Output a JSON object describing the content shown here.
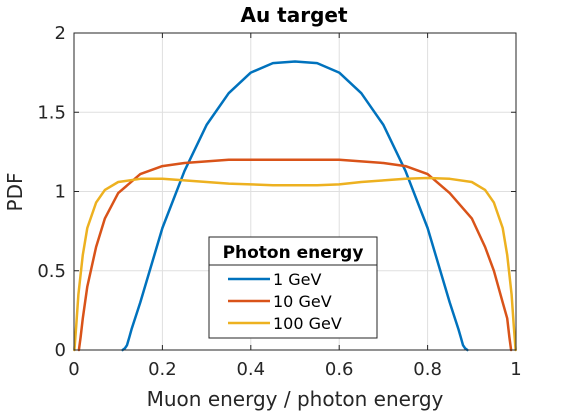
{
  "chart_data": {
    "type": "line",
    "title": "Au target",
    "xlabel": "Muon energy / photon energy",
    "ylabel": "PDF",
    "xlim": [
      0,
      1
    ],
    "ylim": [
      0,
      2
    ],
    "xticks": [
      "0",
      "0.2",
      "0.4",
      "0.6",
      "0.8",
      "1"
    ],
    "yticks": [
      "0",
      "0.5",
      "1",
      "1.5",
      "2"
    ],
    "grid": true,
    "legend": {
      "title": "Photon energy",
      "placement": "bottom-center"
    },
    "series": [
      {
        "name": "1 GeV",
        "color": "#0072BD",
        "x": [
          0.11,
          0.115,
          0.12,
          0.125,
          0.13,
          0.15,
          0.2,
          0.25,
          0.3,
          0.35,
          0.4,
          0.45,
          0.5,
          0.55,
          0.6,
          0.65,
          0.7,
          0.75,
          0.8,
          0.85,
          0.87,
          0.875,
          0.88,
          0.885,
          0.89
        ],
        "y": [
          0.0,
          0.01,
          0.03,
          0.08,
          0.13,
          0.3,
          0.77,
          1.13,
          1.42,
          1.62,
          1.75,
          1.81,
          1.82,
          1.81,
          1.75,
          1.62,
          1.42,
          1.13,
          0.77,
          0.3,
          0.13,
          0.08,
          0.03,
          0.01,
          0.0
        ]
      },
      {
        "name": "10 GeV",
        "color": "#D95319",
        "x": [
          0.011,
          0.015,
          0.02,
          0.03,
          0.05,
          0.07,
          0.1,
          0.15,
          0.2,
          0.25,
          0.3,
          0.35,
          0.4,
          0.5,
          0.6,
          0.65,
          0.7,
          0.75,
          0.8,
          0.85,
          0.9,
          0.93,
          0.95,
          0.97,
          0.98,
          0.985,
          0.989
        ],
        "y": [
          0.0,
          0.08,
          0.2,
          0.4,
          0.65,
          0.83,
          0.99,
          1.11,
          1.16,
          1.18,
          1.19,
          1.2,
          1.2,
          1.2,
          1.2,
          1.19,
          1.18,
          1.16,
          1.11,
          0.99,
          0.83,
          0.65,
          0.5,
          0.3,
          0.2,
          0.08,
          0.0
        ]
      },
      {
        "name": "100 GeV",
        "color": "#EDB120",
        "x": [
          0.001,
          0.005,
          0.01,
          0.02,
          0.03,
          0.05,
          0.07,
          0.1,
          0.15,
          0.2,
          0.25,
          0.3,
          0.35,
          0.4,
          0.45,
          0.5,
          0.55,
          0.6,
          0.65,
          0.7,
          0.75,
          0.8,
          0.85,
          0.9,
          0.93,
          0.95,
          0.97,
          0.98,
          0.99,
          0.995,
          0.999
        ],
        "y": [
          0.0,
          0.15,
          0.35,
          0.6,
          0.77,
          0.93,
          1.01,
          1.06,
          1.08,
          1.08,
          1.07,
          1.06,
          1.05,
          1.045,
          1.04,
          1.04,
          1.04,
          1.045,
          1.06,
          1.07,
          1.08,
          1.085,
          1.08,
          1.06,
          1.01,
          0.93,
          0.77,
          0.6,
          0.35,
          0.15,
          0.0
        ]
      }
    ]
  }
}
